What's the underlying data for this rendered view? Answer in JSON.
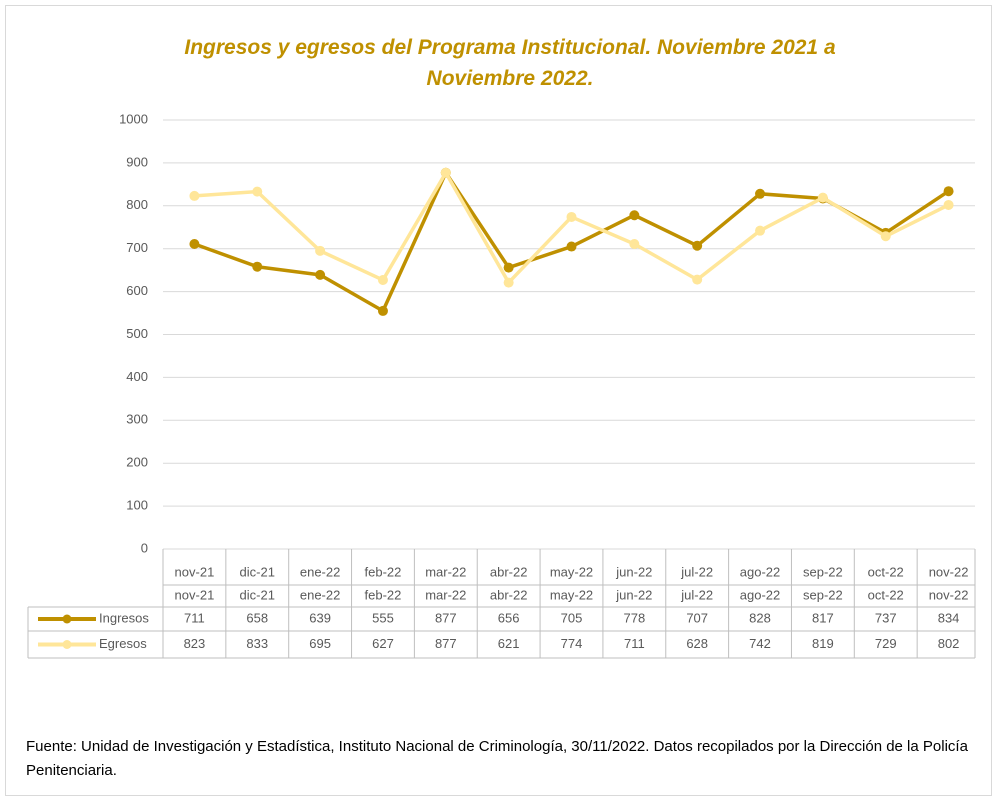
{
  "chart_data": {
    "type": "line",
    "title": "Ingresos y egresos del Programa Institucional.  Noviembre 2021 a Noviembre 2022.",
    "categories": [
      "nov-21",
      "dic-21",
      "ene-22",
      "feb-22",
      "mar-22",
      "abr-22",
      "may-22",
      "jun-22",
      "jul-22",
      "ago-22",
      "sep-22",
      "oct-22",
      "nov-22"
    ],
    "series": [
      {
        "name": "Ingresos",
        "color": "#bf9000",
        "values": [
          711,
          658,
          639,
          555,
          877,
          656,
          705,
          778,
          707,
          828,
          817,
          737,
          834
        ]
      },
      {
        "name": "Egresos",
        "color": "#ffe699",
        "values": [
          823,
          833,
          695,
          627,
          877,
          621,
          774,
          711,
          628,
          742,
          819,
          729,
          802
        ]
      }
    ],
    "ylim": [
      0,
      1000
    ],
    "yticks": [
      0,
      100,
      200,
      300,
      400,
      500,
      600,
      700,
      800,
      900,
      1000
    ],
    "grid": true,
    "source": "Fuente: Unidad de Investigación y Estadística, Instituto Nacional de Criminología, 30/11/2022. Datos recopilados por la Dirección de la Policía Penitenciaria."
  }
}
